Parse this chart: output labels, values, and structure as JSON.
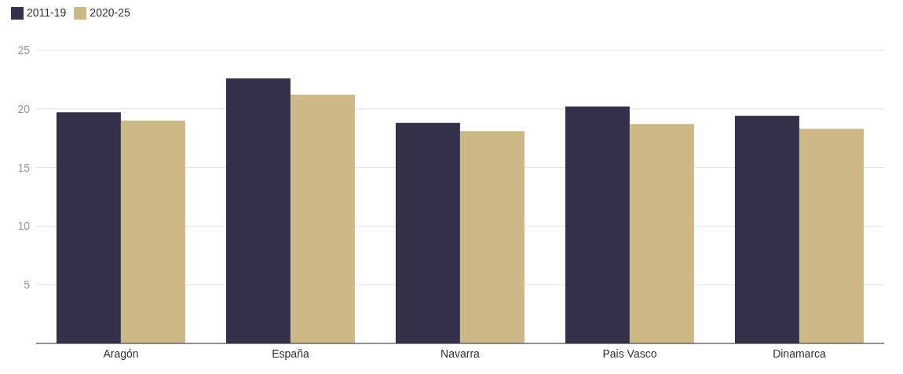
{
  "chart_data": {
    "type": "bar",
    "categories": [
      "Aragón",
      "España",
      "Navarra",
      "Pais Vasco",
      "Dinamarca"
    ],
    "series": [
      {
        "name": "2011-19",
        "color": "#35314a",
        "values": [
          19.7,
          22.6,
          18.8,
          20.2,
          19.4
        ]
      },
      {
        "name": "2020-25",
        "color": "#cdb988",
        "values": [
          19.0,
          21.2,
          18.1,
          18.7,
          18.3
        ]
      }
    ],
    "ylim": [
      0,
      25
    ],
    "yticks": [
      5,
      10,
      15,
      20,
      25
    ],
    "grid": "y",
    "legend": "top left"
  }
}
